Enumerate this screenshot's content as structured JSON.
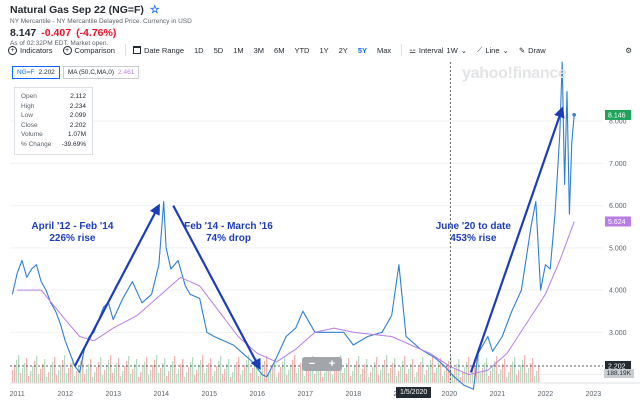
{
  "header": {
    "title": "Natural Gas Sep 22 (NG=F)",
    "exchange": "NY Mercantile - NY Mercantile Delayed Price. Currency in USD",
    "price": "8.147",
    "change": "-0.407",
    "change_pct": "(-4.76%)",
    "as_of": "As of 02:32PM EDT. Market open."
  },
  "toolbar": {
    "indicators": "Indicators",
    "comparison": "Comparison",
    "date_range": "Date Range",
    "periods": [
      "1D",
      "5D",
      "1M",
      "3M",
      "6M",
      "YTD",
      "1Y",
      "2Y",
      "5Y",
      "Max"
    ],
    "active_period": "5Y",
    "interval": "Interval",
    "interval_value": "1W",
    "chart_type": "Line",
    "draw": "Draw"
  },
  "chips": {
    "symbol": "NG=F",
    "symbol_value": "2.202",
    "ma": "MA (50,C,MA,0)",
    "ma_value": "2.461"
  },
  "ohlc": {
    "rows": [
      {
        "label": "Open",
        "value": "2.112"
      },
      {
        "label": "High",
        "value": "2.234"
      },
      {
        "label": "Low",
        "value": "2.099"
      },
      {
        "label": "Close",
        "value": "2.202"
      },
      {
        "label": "Volume",
        "value": "1.07M"
      },
      {
        "label": "% Change",
        "value": "-39.69%"
      }
    ]
  },
  "logo": "yahoo!finance",
  "zoom": {
    "minus": "−",
    "plus": "+"
  },
  "crosshair_date": "1/5/2020",
  "volume_tag": "188.19K",
  "colors": {
    "price_line": "#2e7fd3",
    "ma_line": "#b87ee6",
    "arrow": "#1d3db8",
    "annotation": "#1d3db8",
    "current_tag": "#1fa35a",
    "ma_tag": "#b87ee6",
    "crosshair_tag": "#232a31"
  },
  "chart_data": {
    "type": "line",
    "title": "Natural Gas Sep 22 (NG=F)",
    "xlabel": "",
    "ylabel": "",
    "x_ticks": [
      "2011",
      "2012",
      "2013",
      "2014",
      "2015",
      "2016",
      "2017",
      "2018",
      "2019",
      "2020",
      "2021",
      "2022",
      "2023"
    ],
    "y_ticks": [
      2.0,
      3.0,
      4.0,
      5.0,
      6.0,
      7.0,
      8.0
    ],
    "xlim": [
      2010.85,
      2023.2
    ],
    "ylim": [
      1.8,
      9.4
    ],
    "series": [
      {
        "name": "NG=F",
        "x": [
          2010.9,
          2011.0,
          2011.1,
          2011.2,
          2011.3,
          2011.4,
          2011.5,
          2011.6,
          2011.7,
          2011.8,
          2011.9,
          2012.0,
          2012.1,
          2012.2,
          2012.3,
          2012.4,
          2012.5,
          2012.6,
          2012.7,
          2012.8,
          2012.9,
          2013.0,
          2013.2,
          2013.4,
          2013.6,
          2013.8,
          2013.95,
          2014.05,
          2014.1,
          2014.2,
          2014.35,
          2014.5,
          2014.6,
          2014.8,
          2014.95,
          2015.1,
          2015.3,
          2015.5,
          2015.7,
          2015.9,
          2016.1,
          2016.2,
          2016.4,
          2016.6,
          2016.8,
          2016.95,
          2017.2,
          2017.5,
          2017.8,
          2018.0,
          2018.3,
          2018.6,
          2018.8,
          2018.95,
          2019.1,
          2019.4,
          2019.7,
          2019.9,
          2020.1,
          2020.3,
          2020.5,
          2020.6,
          2020.8,
          2020.9,
          2021.1,
          2021.3,
          2021.5,
          2021.7,
          2021.8,
          2021.9,
          2022.0,
          2022.1,
          2022.2,
          2022.3,
          2022.35,
          2022.4,
          2022.45,
          2022.5,
          2022.55,
          2022.6
        ],
        "values": [
          3.9,
          4.4,
          4.7,
          4.3,
          4.5,
          4.6,
          4.2,
          4.0,
          3.7,
          3.5,
          3.2,
          2.8,
          2.5,
          2.2,
          2.05,
          2.6,
          2.9,
          3.0,
          3.3,
          3.6,
          3.7,
          3.3,
          3.8,
          4.2,
          3.7,
          3.9,
          4.6,
          6.1,
          5.0,
          4.5,
          4.7,
          4.1,
          3.9,
          3.8,
          3.0,
          2.9,
          2.8,
          2.7,
          2.5,
          2.3,
          2.0,
          1.95,
          2.4,
          2.9,
          3.1,
          3.5,
          3.0,
          3.0,
          3.0,
          2.7,
          2.9,
          3.0,
          3.4,
          4.6,
          2.9,
          2.6,
          2.4,
          2.2,
          1.95,
          1.75,
          1.65,
          2.5,
          2.9,
          2.55,
          2.9,
          3.5,
          4.0,
          5.5,
          6.1,
          4.0,
          4.6,
          4.5,
          5.8,
          7.7,
          9.4,
          6.5,
          8.7,
          5.8,
          7.5,
          8.15
        ]
      },
      {
        "name": "MA (50,C,MA,0)",
        "x": [
          2011.0,
          2011.5,
          2012.0,
          2012.3,
          2012.6,
          2013.0,
          2013.5,
          2014.0,
          2014.4,
          2014.8,
          2015.2,
          2015.6,
          2016.0,
          2016.4,
          2016.8,
          2017.2,
          2017.6,
          2018.0,
          2018.4,
          2018.8,
          2019.2,
          2019.6,
          2020.0,
          2020.4,
          2020.8,
          2021.2,
          2021.6,
          2022.0,
          2022.3,
          2022.6
        ],
        "values": [
          4.0,
          4.0,
          3.3,
          2.9,
          2.8,
          3.1,
          3.4,
          3.9,
          4.3,
          4.1,
          3.5,
          2.9,
          2.5,
          2.3,
          2.6,
          3.0,
          3.1,
          3.0,
          2.95,
          2.9,
          2.7,
          2.5,
          2.2,
          2.0,
          2.1,
          2.5,
          3.2,
          3.9,
          4.7,
          5.62
        ]
      }
    ],
    "annotations": [
      {
        "text": "April '12 - Feb '14",
        "detail": "226% rise"
      },
      {
        "text": "Feb '14 - March '16",
        "detail": "74% drop"
      },
      {
        "text": "June '20 to date",
        "detail": "453% rise"
      }
    ],
    "price_labels": {
      "current": "8.146",
      "ma": "5.624",
      "crosshair": "2.202"
    }
  }
}
